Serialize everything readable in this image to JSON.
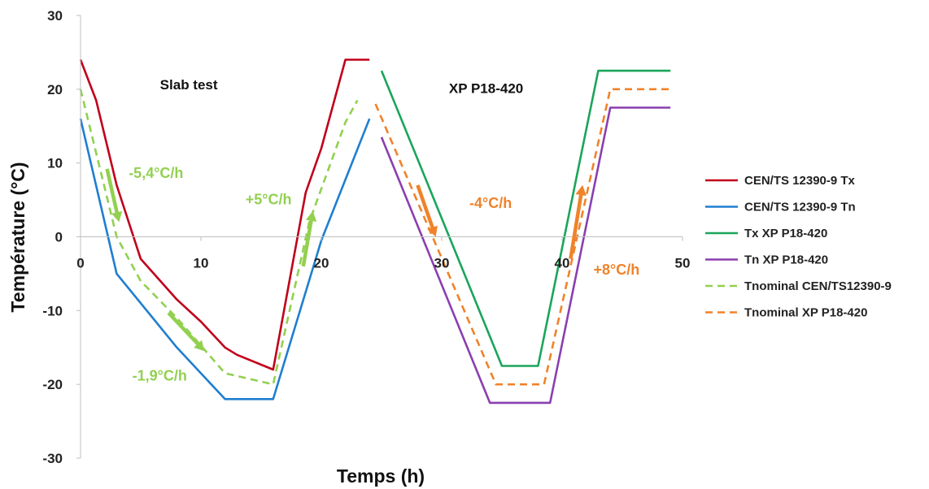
{
  "chart_data": {
    "type": "line",
    "title": "",
    "xlabel": "Temps (h)",
    "ylabel": "Température (°C)",
    "xlim": [
      0,
      50
    ],
    "ylim": [
      -30,
      30
    ],
    "xticks": [
      0,
      10,
      20,
      30,
      40,
      50
    ],
    "yticks": [
      -30,
      -20,
      -10,
      0,
      10,
      20,
      30
    ],
    "grid": false,
    "legend_position": "right",
    "section_labels": [
      "Slab test",
      "XP P18-420"
    ],
    "series": [
      {
        "name": "CEN/TS 12390-9 Tx",
        "color": "#c0001a",
        "dash": "solid",
        "x": [
          0,
          1.3,
          3,
          5,
          8,
          10,
          12,
          13,
          16,
          18.7,
          20,
          22,
          24
        ],
        "y": [
          24,
          18.5,
          7,
          -3,
          -8.5,
          -11.5,
          -15,
          -16,
          -18,
          6,
          12,
          24,
          24
        ]
      },
      {
        "name": "CEN/TS 12390-9 Tn",
        "color": "#1f7ed0",
        "dash": "solid",
        "x": [
          0,
          3,
          8,
          12,
          16,
          20,
          24
        ],
        "y": [
          16,
          -5,
          -15,
          -22,
          -22,
          -0.5,
          16
        ]
      },
      {
        "name": "Tx XP P18-420",
        "color": "#1aa55a",
        "dash": "solid",
        "x": [
          25,
          35,
          38,
          43,
          49
        ],
        "y": [
          22.5,
          -17.5,
          -17.5,
          22.5,
          22.5
        ]
      },
      {
        "name": "Tn XP P18-420",
        "color": "#8a3fb0",
        "dash": "solid",
        "x": [
          25,
          34,
          39,
          44,
          49
        ],
        "y": [
          13.5,
          -22.5,
          -22.5,
          17.5,
          17.5
        ]
      },
      {
        "name": "Tnominal CEN/TS12390-9",
        "color": "#92d050",
        "dash": "dashed",
        "x": [
          0,
          3,
          5,
          8,
          12,
          16,
          19,
          22,
          23
        ],
        "y": [
          20,
          0,
          -6,
          -11,
          -18.5,
          -20,
          2,
          15.5,
          18.5
        ]
      },
      {
        "name": "Tnominal XP P18-420",
        "color": "#f0822a",
        "dash": "dashed",
        "x": [
          24.5,
          34.5,
          38.5,
          44,
          49
        ],
        "y": [
          18,
          -20,
          -20,
          20,
          20
        ]
      }
    ],
    "annotations": [
      {
        "text": "-5,4°C/h",
        "color": "#92d050",
        "tx": 4,
        "ty": 8,
        "arrow": {
          "from": [
            2.2,
            9.2
          ],
          "to": [
            3.2,
            2
          ]
        }
      },
      {
        "text": "-1,9°C/h",
        "color": "#92d050",
        "tx": 4.3,
        "ty": -19.5,
        "arrow": {
          "from": [
            7.3,
            -10.3
          ],
          "to": [
            10.3,
            -15.5
          ]
        }
      },
      {
        "text": "+5°C/h",
        "color": "#92d050",
        "tx": 13.7,
        "ty": 4.4,
        "arrow": {
          "from": [
            18.5,
            -4
          ],
          "to": [
            19.3,
            3.5
          ]
        }
      },
      {
        "text": "-4°C/h",
        "color": "#f0822a",
        "tx": 32.3,
        "ty": 3.9,
        "arrow": {
          "from": [
            28,
            7
          ],
          "to": [
            29.5,
            0
          ]
        }
      },
      {
        "text": "+8°C/h",
        "color": "#f0822a",
        "tx": 42.6,
        "ty": -5.1,
        "arrow": {
          "from": [
            40.7,
            -3
          ],
          "to": [
            41.7,
            7
          ]
        }
      }
    ]
  }
}
